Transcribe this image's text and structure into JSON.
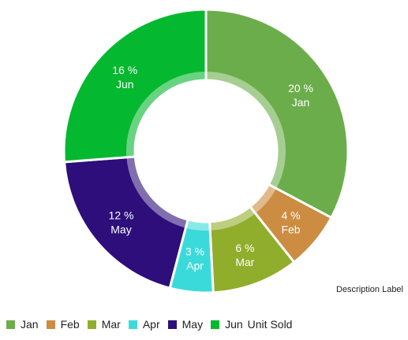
{
  "chart_data": {
    "type": "pie",
    "donut": true,
    "categories": [
      "Jan",
      "Feb",
      "Mar",
      "Apr",
      "May",
      "Jun"
    ],
    "values": [
      20,
      4,
      6,
      3,
      12,
      16
    ],
    "value_labels": [
      "20 %",
      "4 %",
      "6 %",
      "3 %",
      "12 %",
      "16 %"
    ],
    "colors": [
      "#6bad4a",
      "#cc8c42",
      "#91ad2c",
      "#3bdada",
      "#2d0e7a",
      "#04b82f"
    ],
    "legend_title": "Unit Sold",
    "legend_position": "bottom-left",
    "description": "Description Label"
  }
}
